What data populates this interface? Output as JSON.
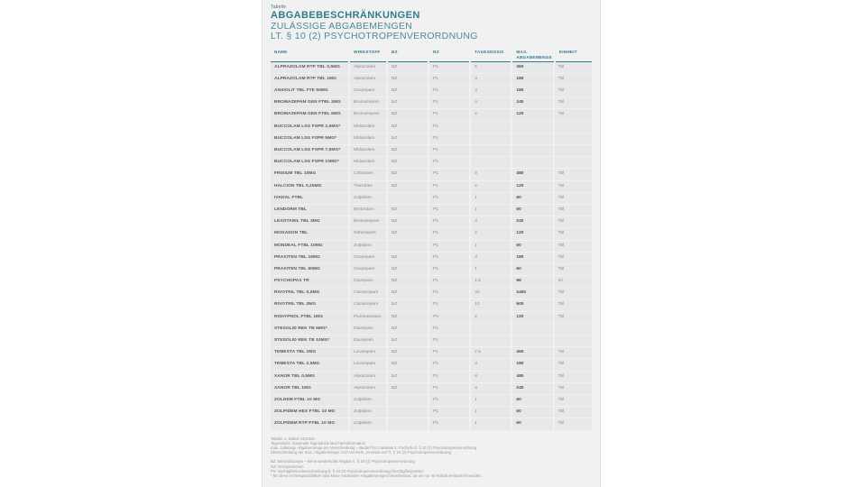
{
  "doc": {
    "kicker": "Tabelle",
    "title": "ABGABEBESCHRÄNKUNGEN",
    "subtitle_line1": "ZULÄSSIGE ABGABEMENGEN",
    "subtitle_line2": "LT. § 10 (2) PSYCHOTROPENVERORDNUNG"
  },
  "colors": {
    "accent_teal": "#2e7d8c",
    "row_background": "#e7e8ea",
    "page_background": "#f1f1f2"
  },
  "table": {
    "headers": [
      "NAME",
      "WIRKSTOFF",
      "BZ",
      "RZ",
      "TAGESDOSIS",
      "MAX. ABGABEMENGE",
      "EINHEIT"
    ],
    "col_keys": [
      "name",
      "wirkstoff",
      "bz",
      "rz",
      "tagesdosis",
      "max",
      "einheit"
    ],
    "rows": [
      {
        "name": "ALPRAZOLAM RTP TBL 0,5MG",
        "wirkstoff": "Alprazolam",
        "bz": "BZ",
        "rz": "P1",
        "tagesdosis": "6",
        "max": "360",
        "einheit": "Tbl"
      },
      {
        "name": "ALPRAZOLAM RTP TBL 1MG",
        "wirkstoff": "Alprazolam",
        "bz": "BZ",
        "rz": "P1",
        "tagesdosis": "3",
        "max": "180",
        "einheit": "Tbl"
      },
      {
        "name": "ANXIOLIT TBL FTE 50MG",
        "wirkstoff": "Oxazepam",
        "bz": "BZ",
        "rz": "P1",
        "tagesdosis": "3",
        "max": "180",
        "einheit": "Tbl"
      },
      {
        "name": "BROMAZEPAM GEN FTBL 3MG",
        "wirkstoff": "Bromazepam",
        "bz": "BZ",
        "rz": "P1",
        "tagesdosis": "4",
        "max": "240",
        "einheit": "Tbl"
      },
      {
        "name": "BROMAZEPAM GEN FTBL 6MG",
        "wirkstoff": "Bromazepam",
        "bz": "BZ",
        "rz": "P1",
        "tagesdosis": "2",
        "max": "120",
        "einheit": "Tbl"
      },
      {
        "name": "BUCCOLAM LSG FSPR 2,5MG*",
        "wirkstoff": "Midazolam",
        "bz": "BZ",
        "rz": "P1",
        "tagesdosis": "",
        "max": "",
        "einheit": ""
      },
      {
        "name": "BUCCOLAM LSG FSPR 5MG*",
        "wirkstoff": "Midazolam",
        "bz": "BZ",
        "rz": "P1",
        "tagesdosis": "",
        "max": "",
        "einheit": ""
      },
      {
        "name": "BUCCOLAM LSG FSPR 7,5MG*",
        "wirkstoff": "Midazolam",
        "bz": "BZ",
        "rz": "P1",
        "tagesdosis": "",
        "max": "",
        "einheit": ""
      },
      {
        "name": "BUCCOLAM LSG FSPR 10MG*",
        "wirkstoff": "Midazolam",
        "bz": "BZ",
        "rz": "P1",
        "tagesdosis": "",
        "max": "",
        "einheit": ""
      },
      {
        "name": "FRISIUM TBL 10MG",
        "wirkstoff": "Clobazam",
        "bz": "BZ",
        "rz": "P1",
        "tagesdosis": "8",
        "max": "480",
        "einheit": "Tbl"
      },
      {
        "name": "HALCION TBL 0,25MG",
        "wirkstoff": "Triazolam",
        "bz": "BZ",
        "rz": "P1",
        "tagesdosis": "2",
        "max": "120",
        "einheit": "Tbl"
      },
      {
        "name": "IVADAL FTBL",
        "wirkstoff": "Zolpidem",
        "bz": "",
        "rz": "P1",
        "tagesdosis": "1",
        "max": "60",
        "einheit": "Tbl"
      },
      {
        "name": "LENDORM TBL",
        "wirkstoff": "Brotizolam",
        "bz": "BZ",
        "rz": "P1",
        "tagesdosis": "1",
        "max": "60",
        "einheit": "Tbl"
      },
      {
        "name": "LEXOTANIL TBL 3MG",
        "wirkstoff": "Bromazepam",
        "bz": "BZ",
        "rz": "P1",
        "tagesdosis": "4",
        "max": "240",
        "einheit": "Tbl"
      },
      {
        "name": "MOGADON TBL",
        "wirkstoff": "Nitrazepam",
        "bz": "BZ",
        "rz": "P1",
        "tagesdosis": "2",
        "max": "120",
        "einheit": "Tbl"
      },
      {
        "name": "MONDEAL FTBL 10MG",
        "wirkstoff": "Zolpidem",
        "bz": "",
        "rz": "P1",
        "tagesdosis": "1",
        "max": "60",
        "einheit": "Tbl"
      },
      {
        "name": "PRAXITEN TBL 15MG",
        "wirkstoff": "Oxazepam",
        "bz": "BZ",
        "rz": "P1",
        "tagesdosis": "3",
        "max": "180",
        "einheit": "Tbl"
      },
      {
        "name": "PRAXITEN TBL 50MG",
        "wirkstoff": "Oxazepam",
        "bz": "BZ",
        "rz": "P1",
        "tagesdosis": "1",
        "max": "60",
        "einheit": "Tbl"
      },
      {
        "name": "PSYCHOPAX TR",
        "wirkstoff": "Diazepam",
        "bz": "BZ",
        "rz": "P1",
        "tagesdosis": "1,6",
        "max": "96",
        "einheit": "ml"
      },
      {
        "name": "RIVOTRIL TBL 0,5MG",
        "wirkstoff": "Clonazepam",
        "bz": "BZ",
        "rz": "P1",
        "tagesdosis": "40",
        "max": "2400",
        "einheit": "Tbl"
      },
      {
        "name": "RIVOTRIL TBL 2MG",
        "wirkstoff": "Clonazepam",
        "bz": "BZ",
        "rz": "P1",
        "tagesdosis": "10",
        "max": "600",
        "einheit": "Tbl"
      },
      {
        "name": "ROHYPNOL FTBL 1MG",
        "wirkstoff": "Flunitrazepam",
        "bz": "BZ",
        "rz": "PV",
        "tagesdosis": "2",
        "max": "120",
        "einheit": "Tbl"
      },
      {
        "name": "STESOLID REK TB 5MG*",
        "wirkstoff": "Diazepam",
        "bz": "BZ",
        "rz": "P1",
        "tagesdosis": "",
        "max": "",
        "einheit": ""
      },
      {
        "name": "STESOLID REK TB 10MG*",
        "wirkstoff": "Diazepam",
        "bz": "BZ",
        "rz": "P1",
        "tagesdosis": "",
        "max": "",
        "einheit": ""
      },
      {
        "name": "TEMESTA TBL 1MG",
        "wirkstoff": "Lorazepam",
        "bz": "BZ",
        "rz": "P1",
        "tagesdosis": "7,5",
        "max": "450",
        "einheit": "Tbl"
      },
      {
        "name": "TEMESTA TBL 2,5MG",
        "wirkstoff": "Lorazepam",
        "bz": "BZ",
        "rz": "P1",
        "tagesdosis": "3",
        "max": "180",
        "einheit": "Tbl"
      },
      {
        "name": "XANOR TBL 0,5MG",
        "wirkstoff": "Alprazolam",
        "bz": "BZ",
        "rz": "P1",
        "tagesdosis": "8",
        "max": "480",
        "einheit": "Tbl"
      },
      {
        "name": "XANOR TBL 1MG",
        "wirkstoff": "Alprazolam",
        "bz": "BZ",
        "rz": "P1",
        "tagesdosis": "4",
        "max": "240",
        "einheit": "Tbl"
      },
      {
        "name": "ZOLDEM FTBL 10 MG",
        "wirkstoff": "Zolpidem",
        "bz": "",
        "rz": "P1",
        "tagesdosis": "1",
        "max": "60",
        "einheit": "Tbl"
      },
      {
        "name": "ZOLPIDEM HEX FTBL 10 MG",
        "wirkstoff": "Zolpidem",
        "bz": "",
        "rz": "P1",
        "tagesdosis": "1",
        "max": "60",
        "einheit": "Tbl"
      },
      {
        "name": "ZOLPIDEM RTP FTBL 10 MG",
        "wirkstoff": "Zolpidem",
        "bz": "",
        "rz": "P1",
        "tagesdosis": "1",
        "max": "60",
        "einheit": "Tbl"
      }
    ]
  },
  "footnotes": {
    "block1": [
      "Tabelle 1, Stand: 01/2026",
      "Tagesdosis: maximale Tagesdosis laut Fachinformation",
      "max. zulässige Abgabemenge pro Verschreibung = Bedarf für 2 Monate lt. Fachinfo lt. § 10 (2) Psychotropenverordnung",
      "Überschreitung der max. Abgabemenge: Arzt-Vermerk „necesse est“ lt. § 10 (2) Psychotropenverordnung"
    ],
    "block2": [
      "BZ: Benzodiazepin – keine wiederholte Abgabe lt. § 10 (4) Psychotropenverordnung",
      "RZ: Rezeptzeichen",
      "PV: Suchtgifteinzelverschreibung lt. § 10 (3) Psychotropenverordnung (Suchtgiftvignette!)",
      "* für diese Arzneispezialitäten sind keine maximalen Abgabemengen berechenbar, da sie nur im Notfall verabreicht werden."
    ]
  }
}
